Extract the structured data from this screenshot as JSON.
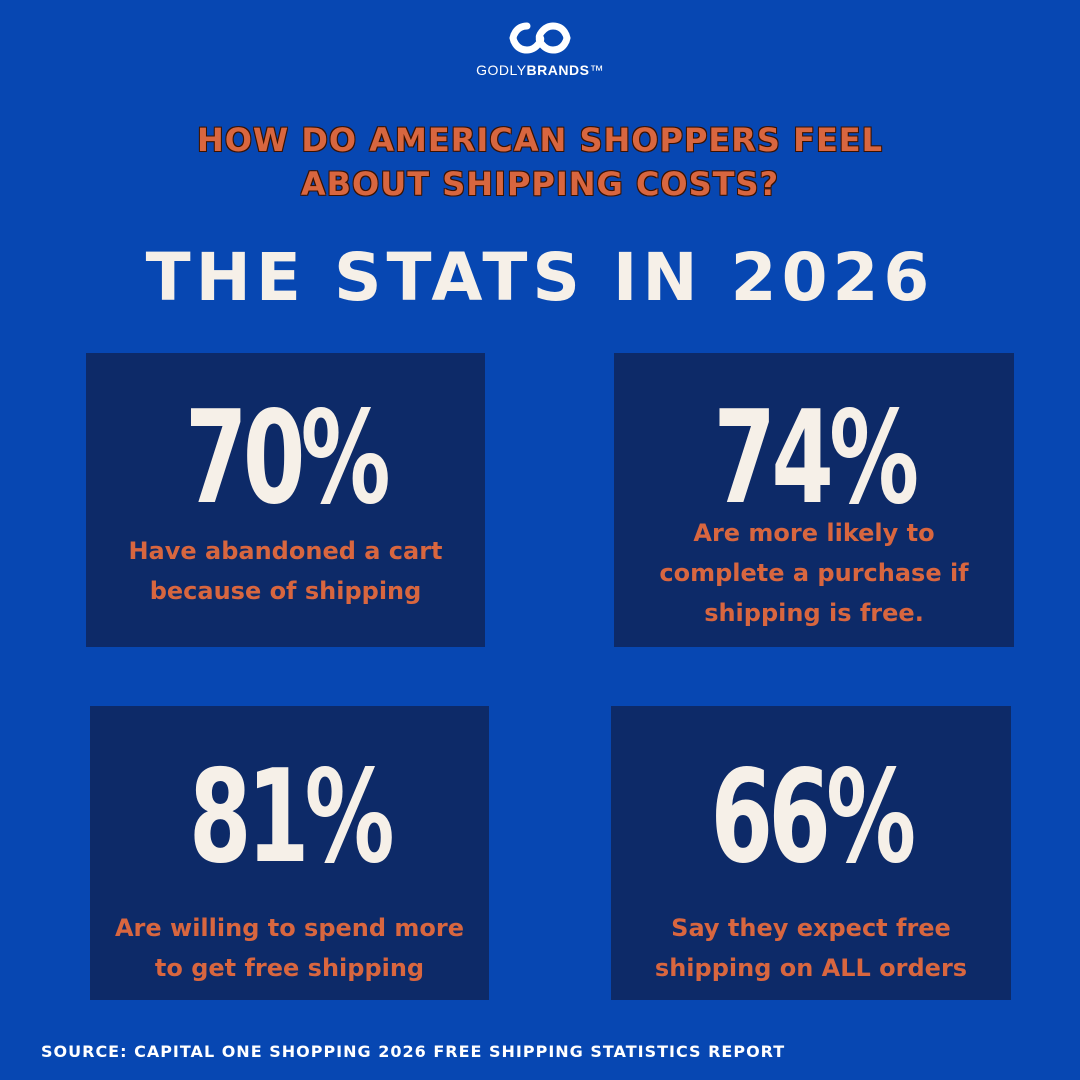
{
  "brand": {
    "logo_icon": "infinity-loop-icon",
    "name_part1": "GODLY",
    "name_part2": "BRANDS",
    "trademark": "™"
  },
  "question": {
    "line1": "HOW DO AMERICAN SHOPPERS FEEL",
    "line2": "ABOUT SHIPPING COSTS?"
  },
  "headline": "THE STATS IN 2026",
  "stats": [
    {
      "percent": "70%",
      "line1": "Have abandoned a cart",
      "line2": "because of shipping",
      "line3": ""
    },
    {
      "percent": "74%",
      "line1": "Are more likely to",
      "line2": "complete a purchase if",
      "line3": "shipping is free."
    },
    {
      "percent": "81%",
      "line1": "Are willing to spend more",
      "line2": "to get free shipping",
      "line3": ""
    },
    {
      "percent": "66%",
      "line1": "Say they expect free",
      "line2": "shipping on ALL orders",
      "line3": ""
    }
  ],
  "source": "SOURCE: CAPITAL ONE SHOPPING 2026 FREE SHIPPING STATISTICS REPORT",
  "colors": {
    "background": "#0747b2",
    "card": "#0d2a68",
    "accent_orange": "#d8663f",
    "cream": "#f6f0e8"
  }
}
